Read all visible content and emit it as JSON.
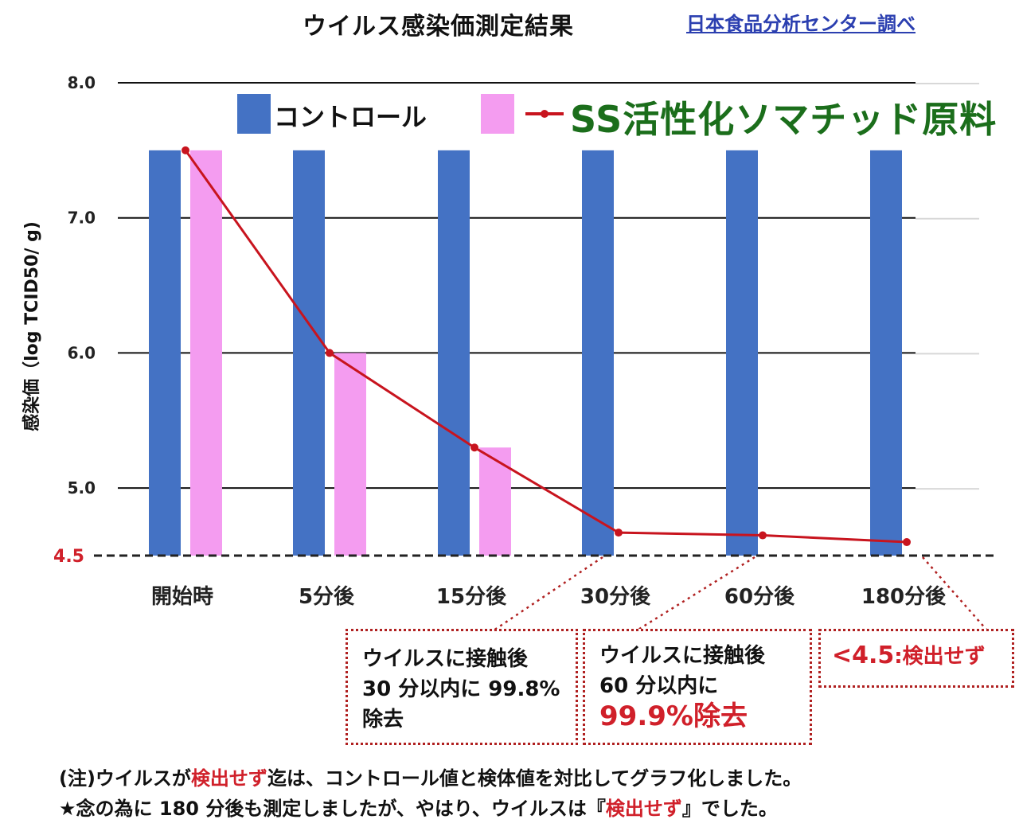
{
  "title": "ウイルス感染価測定結果",
  "source": "日本食品分析センター調べ",
  "legend": {
    "control_label": "コントロール",
    "series_label": "SS活性化ソマチッド原料",
    "control_color": "#4472c4",
    "sample_color": "#f49cf0",
    "line_color": "#c8141e"
  },
  "chart_data": {
    "type": "bar",
    "categories": [
      "開始時",
      "5分後",
      "15分後",
      "30分後",
      "60分後",
      "180分後"
    ],
    "series": [
      {
        "name": "コントロール",
        "values": [
          7.5,
          7.5,
          7.5,
          7.5,
          7.5,
          7.5
        ]
      },
      {
        "name": "SS活性化ソマチッド原料 (bar)",
        "values": [
          7.5,
          6.0,
          5.3,
          4.5,
          4.5,
          4.5
        ]
      },
      {
        "name": "SS活性化ソマチッド原料",
        "type": "line",
        "values": [
          7.5,
          6.0,
          5.3,
          4.67,
          4.65,
          4.6
        ]
      }
    ],
    "ylabel": "感染価（log TCID50/ g)",
    "ylim": [
      4.5,
      8.0
    ],
    "yticks": [
      "8.0",
      "7.0",
      "6.0",
      "5.0"
    ],
    "detection_limit": {
      "value": 4.5,
      "label": "4.5"
    },
    "grid": true
  },
  "annotations": [
    {
      "lines": [
        "ウイルスに接触後",
        "30 分以内に 99.8%",
        "除去"
      ]
    },
    {
      "lines": [
        "ウイルスに接触後",
        "60 分以内に"
      ],
      "highlight": "99.9%除去"
    },
    {
      "prefix": "<4.5",
      "suffix": ":検出せず"
    }
  ],
  "notes": {
    "line1": {
      "a": "(注)ウイルスが",
      "b": "検出せず",
      "c": "迄は、コントロール値と検体値を対比してグラフ化しました。"
    },
    "line2": {
      "a": "★念の為に 180 分後も測定しましたが、やはり、ウイルスは『",
      "b": "検出せず",
      "c": "』でした。"
    }
  }
}
